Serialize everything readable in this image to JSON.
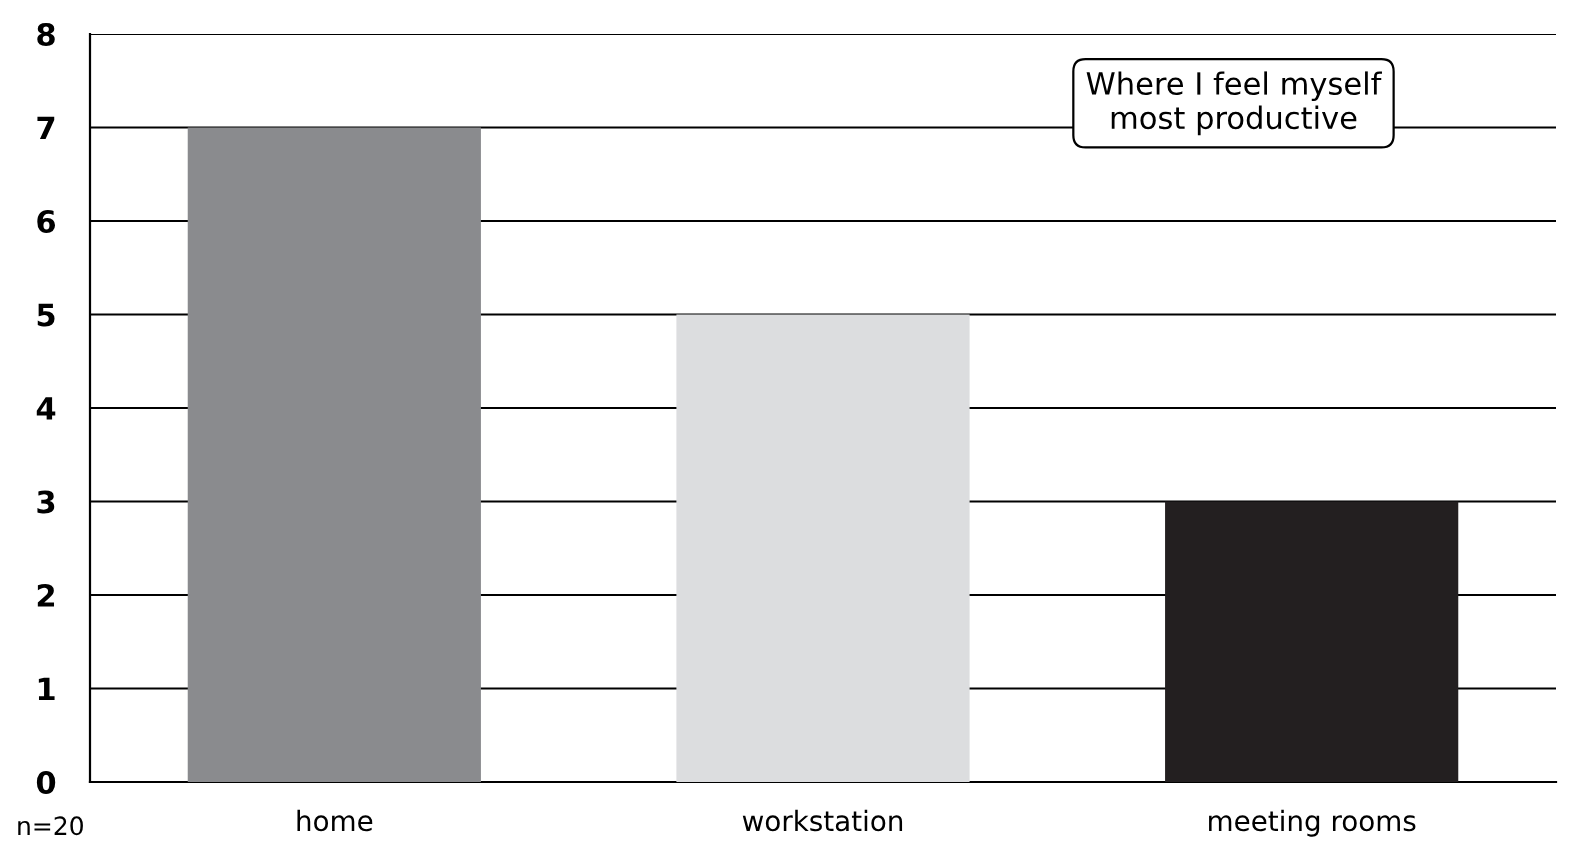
{
  "chart_data": {
    "type": "bar",
    "title": "Where I feel myself\nmost productive",
    "categories": [
      "home",
      "workstation",
      "meeting rooms"
    ],
    "values": [
      7,
      5,
      3
    ],
    "colors": [
      "#8a8b8e",
      "#dcdddf",
      "#231f20"
    ],
    "ylim": [
      0,
      8
    ],
    "yticks": [
      0,
      1,
      2,
      3,
      4,
      5,
      6,
      7,
      8
    ],
    "grid": "y",
    "annotations": [
      "n=20"
    ]
  }
}
